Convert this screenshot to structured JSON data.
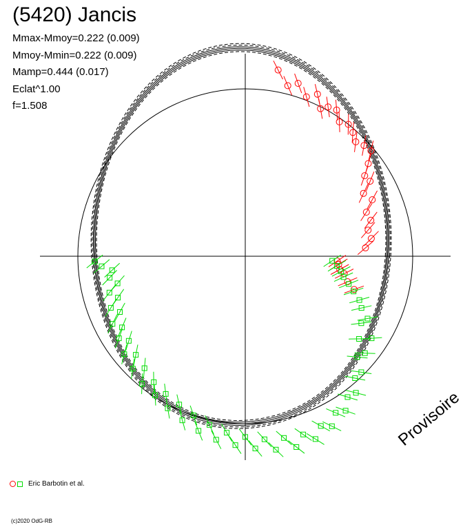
{
  "title": "(5420) Jancis",
  "stats": [
    "Mmax-Mmoy=0.222 (0.009)",
    "Mmoy-Mmin=0.222 (0.009)",
    "Mamp=0.444 (0.017)",
    "Eclat^1.00",
    "f=1.508"
  ],
  "legend_label": "Eric Barbotin et al.",
  "copyright": "(c)2020 OdG-RB",
  "watermark": "Provisoire",
  "colors": {
    "session_red": "#ff0000",
    "session_green": "#00dd00",
    "curve": "#000000"
  },
  "chart_data": {
    "type": "scatter",
    "projection": "polar lightcurve",
    "reference_circle_radius": 1.0,
    "grid": false,
    "legend_placement": "bottom-left",
    "series": [
      {
        "marker": "circle",
        "color": "#ff0000",
        "points": [
          [
            80,
            1.13
          ],
          [
            76,
            1.05
          ],
          [
            73,
            1.08
          ],
          [
            69,
            1.02
          ],
          [
            66,
            1.06
          ],
          [
            63,
            0.99
          ],
          [
            61,
            1.02
          ],
          [
            58,
            1.03
          ],
          [
            55,
            0.98
          ],
          [
            52,
            1.0
          ],
          [
            49,
            0.98
          ],
          [
            46,
            0.95
          ],
          [
            43,
            0.97
          ],
          [
            40,
            0.98
          ],
          [
            37,
            0.92
          ],
          [
            34,
            0.86
          ],
          [
            31,
            0.87
          ],
          [
            28,
            0.8
          ],
          [
            24,
            0.83
          ],
          [
            20,
            0.77
          ],
          [
            16,
            0.78
          ],
          [
            12,
            0.75
          ],
          [
            8,
            0.76
          ],
          [
            4,
            0.72
          ],
          [
            -3,
            0.55
          ],
          [
            -5,
            0.56
          ],
          [
            -8,
            0.57
          ],
          [
            -10,
            0.6
          ],
          [
            -14,
            0.63
          ],
          [
            -17,
            0.68
          ]
        ]
      },
      {
        "marker": "square",
        "color": "#00dd00",
        "points": [
          [
            184,
            0.86
          ],
          [
            186,
            0.8
          ],
          [
            189,
            0.82
          ],
          [
            192,
            0.78
          ],
          [
            195,
            0.84
          ],
          [
            198,
            0.8
          ],
          [
            201,
            0.86
          ],
          [
            204,
            0.82
          ],
          [
            207,
            0.89
          ],
          [
            210,
            0.85
          ],
          [
            213,
            0.9
          ],
          [
            216,
            0.86
          ],
          [
            219,
            0.93
          ],
          [
            222,
            0.88
          ],
          [
            225,
            0.95
          ],
          [
            228,
            0.9
          ],
          [
            231,
            0.98
          ],
          [
            234,
            0.93
          ],
          [
            237,
            0.99
          ],
          [
            240,
            0.95
          ],
          [
            243,
            1.02
          ],
          [
            246,
            0.97
          ],
          [
            249,
            1.05
          ],
          [
            252,
            1.0
          ],
          [
            255,
            1.08
          ],
          [
            258,
            1.03
          ],
          [
            261,
            1.11
          ],
          [
            264,
            1.06
          ],
          [
            267,
            1.13
          ],
          [
            270,
            1.08
          ],
          [
            273,
            1.15
          ],
          [
            276,
            1.1
          ],
          [
            279,
            1.17
          ],
          [
            282,
            1.11
          ],
          [
            285,
            1.18
          ],
          [
            288,
            1.12
          ],
          [
            291,
            1.17
          ],
          [
            294,
            1.11
          ],
          [
            297,
            1.14
          ],
          [
            300,
            1.08
          ],
          [
            303,
            1.1
          ],
          [
            306,
            1.04
          ],
          [
            309,
            1.05
          ],
          [
            312,
            0.98
          ],
          [
            315,
            0.98
          ],
          [
            318,
            0.9
          ],
          [
            321,
            0.92
          ],
          [
            324,
            0.84
          ],
          [
            327,
            0.9
          ],
          [
            330,
            0.8
          ],
          [
            333,
            0.82
          ],
          [
            336,
            0.76
          ],
          [
            339,
            0.73
          ],
          [
            342,
            0.68
          ],
          [
            345,
            0.64
          ],
          [
            348,
            0.6
          ],
          [
            351,
            0.58
          ],
          [
            354,
            0.55
          ],
          [
            357,
            0.52
          ],
          [
            182,
            0.9
          ]
        ]
      }
    ]
  }
}
